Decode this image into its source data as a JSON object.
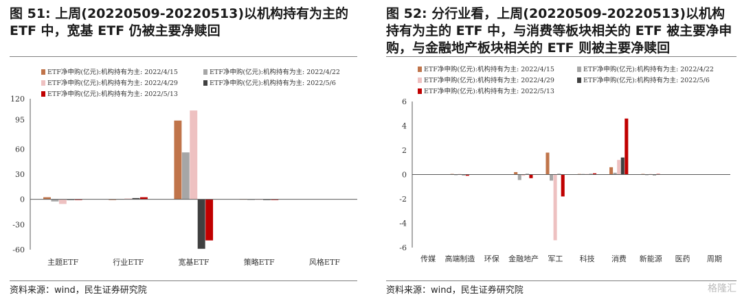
{
  "left": {
    "title": "图 51: 上周(20220509-20220513)以机构持有为主的 ETF 中，宽基 ETF 仍被主要净赎回",
    "source": "资料来源：wind，民生证券研究院",
    "chart_data": {
      "type": "bar",
      "categories": [
        "主题ETF",
        "行业ETF",
        "宽基ETF",
        "策略ETF",
        "风格ETF"
      ],
      "ylim": [
        -60,
        120
      ],
      "yticks": [
        -60,
        -30,
        0,
        30,
        60,
        95,
        120
      ],
      "grid": false,
      "legend_position": "top",
      "series": [
        {
          "name": "ETF净申购(亿元):机构持有为主: 2022/4/15",
          "color": "#C0744A",
          "values": [
            2.5,
            -0.5,
            94,
            0.5,
            0
          ]
        },
        {
          "name": "ETF净申购(亿元):机构持有为主: 2022/4/22",
          "color": "#A6A6A6",
          "values": [
            -2.5,
            0.5,
            56,
            -0.3,
            0
          ]
        },
        {
          "name": "ETF净申购(亿元):机构持有为主: 2022/4/29",
          "color": "#EEC1C1",
          "values": [
            -5.5,
            1.0,
            106,
            0.3,
            0
          ]
        },
        {
          "name": "ETF净申购(亿元):机构持有为主: 2022/5/6",
          "color": "#404040",
          "values": [
            -0.8,
            1.5,
            -59,
            -0.6,
            0
          ]
        },
        {
          "name": "ETF净申购(亿元):机构持有为主: 2022/5/13",
          "color": "#C00000",
          "values": [
            -0.8,
            2.5,
            -49,
            -0.5,
            0
          ]
        }
      ]
    }
  },
  "right": {
    "title": "图 52: 分行业看，上周(20220509-20220513)以机构持有为主的 ETF 中，与消费等板块相关的 ETF 被主要净申购，与金融地产板块相关的 ETF 则被主要净赎回",
    "source": "资料来源：wind，民生证券研究院",
    "watermark": "格隆汇",
    "chart_data": {
      "type": "bar",
      "categories": [
        "传媒",
        "高端制造",
        "环保",
        "金融地产",
        "军工",
        "科技",
        "消费",
        "新能源",
        "医药",
        "周期"
      ],
      "ylim": [
        -6,
        6
      ],
      "yticks": [
        -6,
        -4,
        -2,
        0,
        2,
        4,
        6
      ],
      "grid": false,
      "legend_position": "top",
      "series": [
        {
          "name": "ETF净申购(亿元):机构持有为主: 2022/4/15",
          "color": "#C0744A",
          "values": [
            0,
            0.05,
            0,
            0.2,
            1.8,
            0.05,
            0.6,
            0.05,
            0,
            0
          ]
        },
        {
          "name": "ETF净申购(亿元):机构持有为主: 2022/4/22",
          "color": "#A6A6A6",
          "values": [
            0,
            -0.05,
            0,
            -0.45,
            -0.5,
            0.05,
            0.15,
            -0.05,
            0,
            0
          ]
        },
        {
          "name": "ETF净申购(亿元):机构持有为主: 2022/4/29",
          "color": "#EEC1C1",
          "values": [
            0,
            0.05,
            0,
            -0.1,
            -5.4,
            0.05,
            1.2,
            0.05,
            0,
            0
          ]
        },
        {
          "name": "ETF净申购(亿元):机构持有为主: 2022/5/6",
          "color": "#404040",
          "values": [
            0,
            -0.05,
            0,
            0.05,
            0.05,
            0.05,
            1.4,
            -0.05,
            0,
            0
          ]
        },
        {
          "name": "ETF净申购(亿元):机构持有为主: 2022/5/13",
          "color": "#C00000",
          "values": [
            0,
            -0.1,
            0,
            -0.3,
            -1.8,
            0.1,
            4.6,
            0.05,
            0,
            0
          ]
        }
      ]
    }
  }
}
